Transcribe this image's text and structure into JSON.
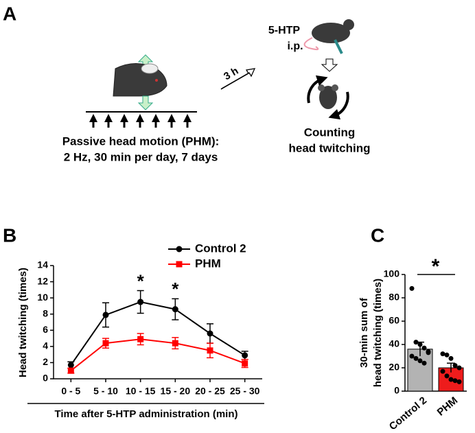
{
  "diagram": {
    "panel": "A",
    "drug": "5-HTP",
    "route": "i.p.",
    "delay": "3 h",
    "protocol_title": "Passive head motion (PHM):",
    "protocol_detail": "2 Hz, 30 min per day, 7 days",
    "outcome": [
      "Counting",
      "head twitching"
    ]
  },
  "chart_data": [
    {
      "type": "line",
      "panel": "B",
      "xlabel": "Time after 5-HTP administration (min)",
      "ylabel": "Head twitching (times)",
      "categories": [
        "0 - 5",
        "5 - 10",
        "10 - 15",
        "15 - 20",
        "20 - 25",
        "25 - 30"
      ],
      "series": [
        {
          "name": "Control 2",
          "color": "#000000",
          "values": [
            1.7,
            7.9,
            9.5,
            8.6,
            5.6,
            2.9
          ],
          "errors": [
            0.4,
            1.5,
            1.4,
            1.3,
            1.2,
            0.5
          ]
        },
        {
          "name": "PHM",
          "color": "#ff0000",
          "values": [
            1.0,
            4.4,
            4.9,
            4.4,
            3.5,
            1.9
          ],
          "errors": [
            0.3,
            0.6,
            0.7,
            0.7,
            0.9,
            0.5
          ]
        }
      ],
      "annotations": [
        {
          "text": "*",
          "category": "10 - 15"
        },
        {
          "text": "*",
          "category": "15 - 20"
        }
      ],
      "ylim": [
        0,
        14
      ],
      "yticks": [
        0,
        2,
        4,
        6,
        8,
        10,
        12,
        14
      ],
      "legend": "top"
    },
    {
      "type": "bar",
      "panel": "C",
      "ylabel": [
        "30-min sum of",
        "head twitching (times)"
      ],
      "categories": [
        "Control 2",
        "PHM"
      ],
      "values": [
        36,
        20
      ],
      "errors": [
        6,
        4
      ],
      "colors": [
        "#b3b3b3",
        "#ee1c1c"
      ],
      "points": [
        [
          88,
          42,
          40,
          37,
          33,
          30,
          28,
          26,
          24,
          34
        ],
        [
          32,
          31,
          28,
          22,
          20,
          17,
          13,
          10,
          9,
          8
        ]
      ],
      "significance": "*",
      "ylim": [
        0,
        100
      ],
      "yticks": [
        0,
        20,
        40,
        60,
        80,
        100
      ]
    }
  ]
}
